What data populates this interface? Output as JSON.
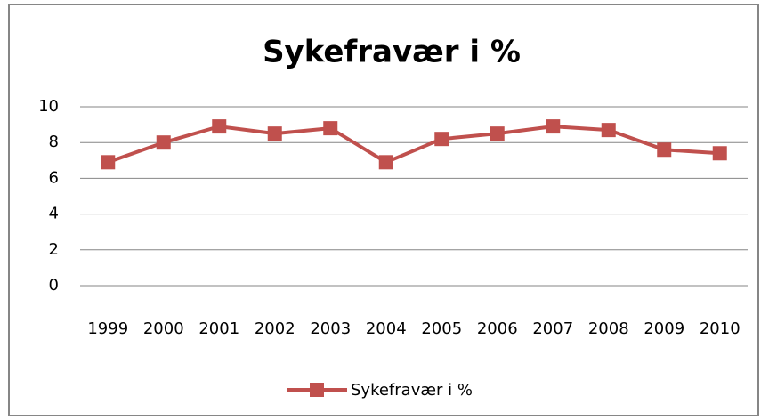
{
  "chart_data": {
    "type": "line",
    "title": "Sykefravær i %",
    "categories": [
      "1999",
      "2000",
      "2001",
      "2002",
      "2003",
      "2004",
      "2005",
      "2006",
      "2007",
      "2008",
      "2009",
      "2010"
    ],
    "series": [
      {
        "name": "Sykefravær i %",
        "color": "#c0504d",
        "values": [
          6.9,
          8.0,
          8.9,
          8.5,
          8.8,
          6.9,
          8.2,
          8.5,
          8.9,
          8.7,
          7.6,
          7.4
        ]
      }
    ],
    "ylim": [
      0,
      10
    ],
    "yticks": [
      0,
      2,
      4,
      6,
      8,
      10
    ],
    "grid": true,
    "legend": "bottom"
  }
}
